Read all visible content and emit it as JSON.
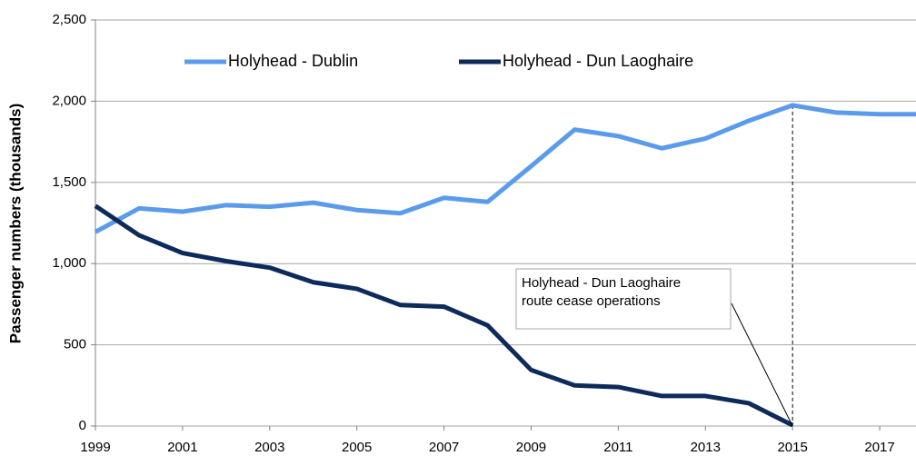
{
  "chart_data": {
    "type": "line",
    "y_label": "Passenger numbers (thousands)",
    "x": [
      1999,
      2000,
      2001,
      2002,
      2003,
      2004,
      2005,
      2006,
      2007,
      2008,
      2009,
      2010,
      2011,
      2012,
      2013,
      2014,
      2015,
      2016,
      2017,
      2018
    ],
    "series": [
      {
        "name": "Holyhead - Dublin",
        "color": "#5b9bec",
        "values": [
          1195,
          1340,
          1320,
          1360,
          1350,
          1375,
          1330,
          1310,
          1405,
          1380,
          1600,
          1825,
          1785,
          1710,
          1770,
          1880,
          1975,
          1930,
          1920,
          1920
        ]
      },
      {
        "name": "Holyhead - Dun Laoghaire",
        "color": "#0e2a5c",
        "values": [
          1355,
          1175,
          1065,
          1015,
          975,
          885,
          845,
          745,
          735,
          620,
          345,
          250,
          240,
          185,
          185,
          140,
          5,
          null,
          null,
          null
        ]
      }
    ],
    "annotation": "Holyhead - Dun Laoghaire route cease operations",
    "annotation_x": 2015,
    "xlim": [
      1999,
      2018
    ],
    "xticks": [
      1999,
      2001,
      2003,
      2005,
      2007,
      2009,
      2011,
      2013,
      2015,
      2017
    ],
    "ylim": [
      0,
      2500
    ],
    "yticks": [
      0,
      {
        "value": 500,
        "label": "500"
      },
      {
        "value": 1000,
        "label": "1,000"
      },
      {
        "value": 1500,
        "label": "1,500"
      },
      {
        "value": 2000,
        "label": "2,000"
      },
      {
        "value": 2500,
        "label": "2,500"
      }
    ],
    "grid": true
  }
}
